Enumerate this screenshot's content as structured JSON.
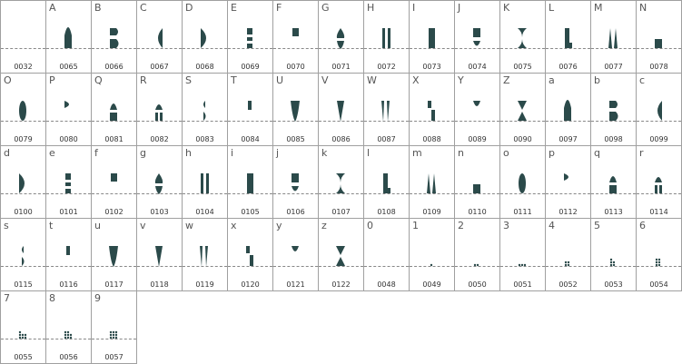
{
  "grid": {
    "cells": [
      {
        "label": "",
        "code": "0032"
      },
      {
        "label": "A",
        "code": "0065"
      },
      {
        "label": "B",
        "code": "0066"
      },
      {
        "label": "C",
        "code": "0067"
      },
      {
        "label": "D",
        "code": "0068"
      },
      {
        "label": "E",
        "code": "0069"
      },
      {
        "label": "F",
        "code": "0070"
      },
      {
        "label": "G",
        "code": "0071"
      },
      {
        "label": "H",
        "code": "0072"
      },
      {
        "label": "I",
        "code": "0073"
      },
      {
        "label": "J",
        "code": "0074"
      },
      {
        "label": "K",
        "code": "0075"
      },
      {
        "label": "L",
        "code": "0076"
      },
      {
        "label": "M",
        "code": "0077"
      },
      {
        "label": "N",
        "code": "0078"
      },
      {
        "label": "O",
        "code": "0079"
      },
      {
        "label": "P",
        "code": "0080"
      },
      {
        "label": "Q",
        "code": "0081"
      },
      {
        "label": "R",
        "code": "0082"
      },
      {
        "label": "S",
        "code": "0083"
      },
      {
        "label": "T",
        "code": "0084"
      },
      {
        "label": "U",
        "code": "0085"
      },
      {
        "label": "V",
        "code": "0086"
      },
      {
        "label": "W",
        "code": "0087"
      },
      {
        "label": "X",
        "code": "0088"
      },
      {
        "label": "Y",
        "code": "0089"
      },
      {
        "label": "Z",
        "code": "0090"
      },
      {
        "label": "a",
        "code": "0097"
      },
      {
        "label": "b",
        "code": "0098"
      },
      {
        "label": "c",
        "code": "0099"
      },
      {
        "label": "d",
        "code": "0100"
      },
      {
        "label": "e",
        "code": "0101"
      },
      {
        "label": "f",
        "code": "0102"
      },
      {
        "label": "g",
        "code": "0103"
      },
      {
        "label": "h",
        "code": "0104"
      },
      {
        "label": "i",
        "code": "0105"
      },
      {
        "label": "j",
        "code": "0106"
      },
      {
        "label": "k",
        "code": "0107"
      },
      {
        "label": "l",
        "code": "0108"
      },
      {
        "label": "m",
        "code": "0109"
      },
      {
        "label": "n",
        "code": "0110"
      },
      {
        "label": "o",
        "code": "0111"
      },
      {
        "label": "p",
        "code": "0112"
      },
      {
        "label": "q",
        "code": "0113"
      },
      {
        "label": "r",
        "code": "0114"
      },
      {
        "label": "s",
        "code": "0115"
      },
      {
        "label": "t",
        "code": "0116"
      },
      {
        "label": "u",
        "code": "0117"
      },
      {
        "label": "v",
        "code": "0118"
      },
      {
        "label": "w",
        "code": "0119"
      },
      {
        "label": "x",
        "code": "0120"
      },
      {
        "label": "y",
        "code": "0121"
      },
      {
        "label": "z",
        "code": "0122"
      },
      {
        "label": "0",
        "code": "0048"
      },
      {
        "label": "1",
        "code": "0049"
      },
      {
        "label": "2",
        "code": "0050"
      },
      {
        "label": "3",
        "code": "0051"
      },
      {
        "label": "4",
        "code": "0052"
      },
      {
        "label": "5",
        "code": "0053"
      },
      {
        "label": "6",
        "code": "0054"
      },
      {
        "label": "7",
        "code": "0055"
      },
      {
        "label": "8",
        "code": "0056"
      },
      {
        "label": "9",
        "code": "0057"
      }
    ]
  },
  "colors": {
    "glyph": "#2b4a4a",
    "border": "#a0a0a0",
    "baseline": "#888888"
  }
}
